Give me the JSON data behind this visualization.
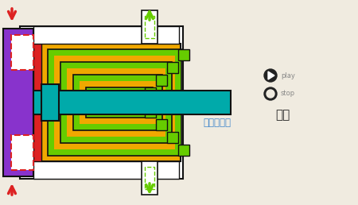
{
  "bg_color": "#f0ebe0",
  "title_text": "第一级伸出",
  "title_color": "#4488cc",
  "play_text": "play",
  "stop_text": "stop",
  "shouhuo_text": "收缩",
  "colors": {
    "purple": "#8833cc",
    "red": "#dd2222",
    "orange": "#f0a800",
    "green": "#66cc00",
    "teal": "#00aaaa",
    "white": "#ffffff",
    "dark": "#111111",
    "bg": "#f0ebe0"
  }
}
